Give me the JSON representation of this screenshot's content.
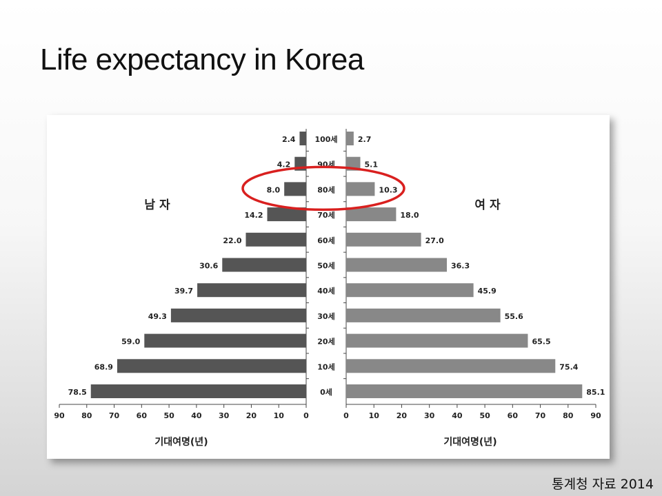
{
  "slide": {
    "title": "Life expectancy in Korea",
    "source": "통계청 자료 2014"
  },
  "chart_data": {
    "type": "bar",
    "orientation": "horizontal",
    "layout": "back-to-back population pyramid",
    "categories": [
      "100세",
      "90세",
      "80세",
      "70세",
      "60세",
      "50세",
      "40세",
      "30세",
      "20세",
      "10세",
      "0세"
    ],
    "series": [
      {
        "name": "남 자",
        "values": [
          2.4,
          4.2,
          8.0,
          14.2,
          22.0,
          30.6,
          39.7,
          49.3,
          59.0,
          68.9,
          78.5
        ],
        "color": "#555555",
        "side": "left"
      },
      {
        "name": "여 자",
        "values": [
          2.7,
          5.1,
          10.3,
          18.0,
          27.0,
          36.3,
          45.9,
          55.6,
          65.5,
          75.4,
          85.1
        ],
        "color": "#888888",
        "side": "right"
      }
    ],
    "xlabel": "기대여명(년)",
    "xlim": [
      0,
      90
    ],
    "xticks": [
      0,
      10,
      20,
      30,
      40,
      50,
      60,
      70,
      80,
      90
    ],
    "grid": false,
    "annotation": {
      "type": "ellipse",
      "category": "80세",
      "color": "#d9201f"
    }
  }
}
